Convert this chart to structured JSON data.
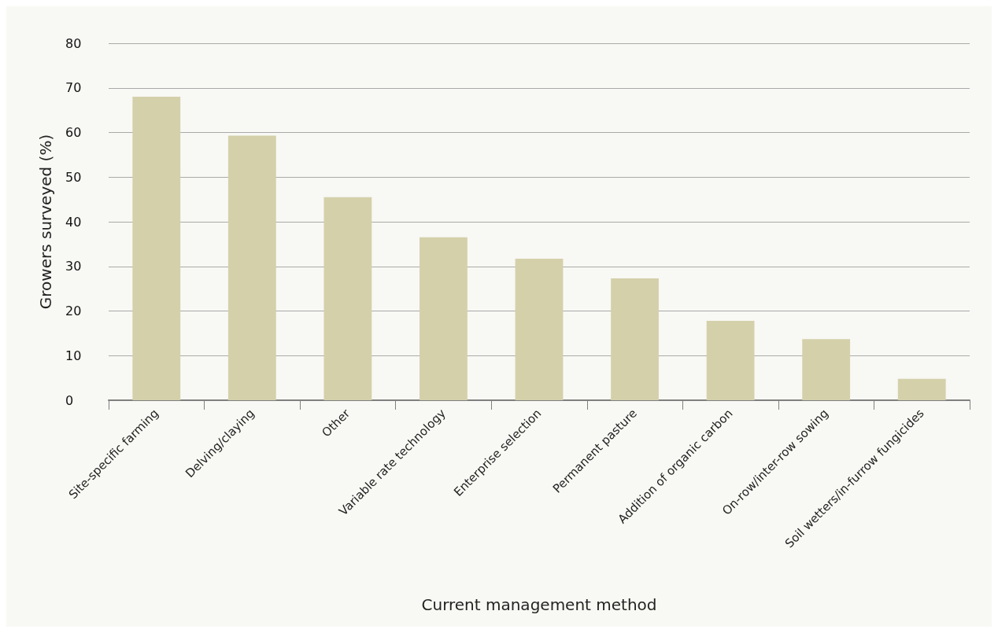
{
  "chart_data": {
    "type": "bar",
    "xlabel": "Current management method",
    "ylabel": "Growers surveyed (%)",
    "categories": [
      "Site-specific farming",
      "Delving/claying",
      "Other",
      "Variable rate technology",
      "Enterprise selection",
      "Permanent pasture",
      "Addition of organic carbon",
      "On-row/inter-row sowing",
      "Soil wetters/in-furrow fungicides"
    ],
    "values": [
      68,
      59.3,
      45.5,
      36.5,
      31.7,
      27.3,
      17.8,
      13.7,
      4.8
    ],
    "color": "#d4d0aa",
    "ylim": [
      0,
      80
    ],
    "yticks": [
      0,
      10,
      20,
      30,
      40,
      50,
      60,
      70,
      80
    ],
    "grid": "y"
  }
}
